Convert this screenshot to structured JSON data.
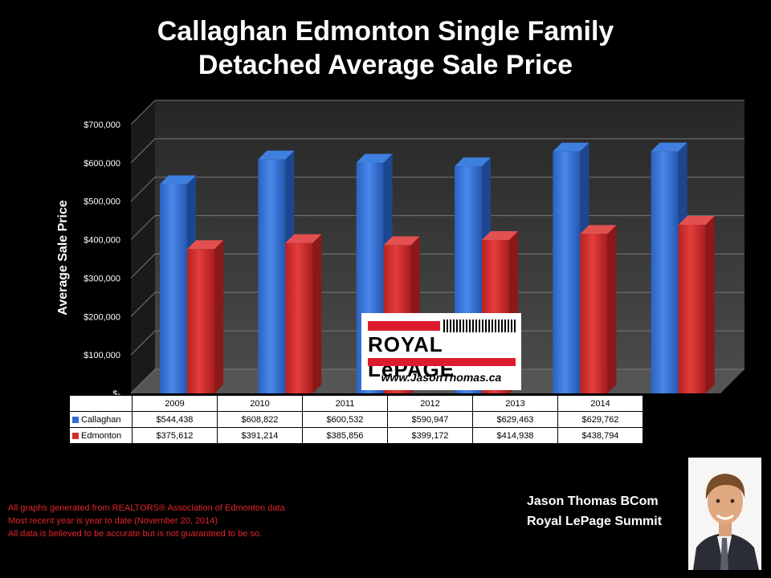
{
  "header": {
    "title_line1": "Callaghan Edmonton Single Family",
    "title_line2": "Detached Average Sale Price"
  },
  "chart_data": {
    "type": "bar",
    "categories": [
      "2009",
      "2010",
      "2011",
      "2012",
      "2013",
      "2014"
    ],
    "series": [
      {
        "name": "Callaghan",
        "values": [
          544438,
          608822,
          600532,
          590947,
          629463,
          629762
        ],
        "labels": [
          "$544,438",
          "$608,822",
          "$600,532",
          "$590,947",
          "$629,463",
          "$629,762"
        ],
        "color": "#2f6fd6"
      },
      {
        "name": "Edmonton",
        "values": [
          375612,
          391214,
          385856,
          399172,
          414938,
          438794
        ],
        "labels": [
          "$375,612",
          "$391,214",
          "$385,856",
          "$399,172",
          "$414,938",
          "$438,794"
        ],
        "color": "#d62b2b"
      }
    ],
    "ylabel": "Average Sale Price",
    "ylim": [
      0,
      700000
    ],
    "yticks": [
      0,
      100000,
      200000,
      300000,
      400000,
      500000,
      600000,
      700000
    ],
    "ytick_labels": [
      "$-",
      "$100,000",
      "$200,000",
      "$300,000",
      "$400,000",
      "$500,000",
      "$600,000",
      "$700,000"
    ],
    "grid": true,
    "legend": "data-table-below"
  },
  "logo": {
    "brand": "ROYAL LePAGE",
    "url": "www.JasonThomas.ca"
  },
  "footer": {
    "line1": "All graphs generated from REALTORS® Association of Edmonton data",
    "line2": "Most recent year is year to date (November 20, 2014)",
    "line3": "All data is believed to be accurate but is not guaranteed to be so."
  },
  "agent": {
    "name": "Jason Thomas BCom",
    "company": "Royal LePage Summit"
  },
  "colors": {
    "background": "#000000",
    "callaghan": "#2f6fd6",
    "edmonton": "#d62b2b",
    "footer_text": "#e3242b"
  }
}
